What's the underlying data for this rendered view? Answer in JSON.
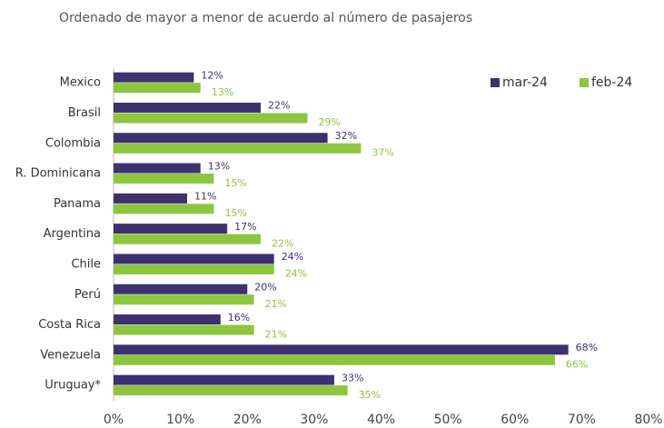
{
  "chart_data": {
    "type": "hbar",
    "title": "Ordenado de mayor a menor de acuerdo al número de pasajeros",
    "categories": [
      "Mexico",
      "Brasil",
      "Colombia",
      "R. Dominicana",
      "Panama",
      "Argentina",
      "Chile",
      "Perú",
      "Costa Rica",
      "Venezuela",
      "Uruguay*"
    ],
    "series": [
      {
        "name": "mar-24",
        "color": "#3d3170",
        "values": [
          12,
          22,
          32,
          13,
          11,
          17,
          24,
          20,
          16,
          68,
          33
        ],
        "value_labels": [
          "12%",
          "22%",
          "32%",
          "13%",
          "11%",
          "17%",
          "24%",
          "20%",
          "16%",
          "68%",
          "33%"
        ]
      },
      {
        "name": "feb-24",
        "color": "#8cc63f",
        "values": [
          13,
          29,
          37,
          15,
          15,
          22,
          24,
          21,
          21,
          66,
          35
        ],
        "value_labels": [
          "13%",
          "29%",
          "37%",
          "15%",
          "15%",
          "22%",
          "24%",
          "21%",
          "21%",
          "66%",
          "35%"
        ]
      }
    ],
    "xlim": [
      0,
      80
    ],
    "xticks": [
      {
        "value": 0,
        "label": "0%"
      },
      {
        "value": 10,
        "label": "10%"
      },
      {
        "value": 20,
        "label": "20%"
      },
      {
        "value": 30,
        "label": "30%"
      },
      {
        "value": 40,
        "label": "40%"
      },
      {
        "value": 50,
        "label": "50%"
      },
      {
        "value": 60,
        "label": "60%"
      },
      {
        "value": 70,
        "label": "70%"
      },
      {
        "value": 80,
        "label": "80%"
      }
    ],
    "legend": "top-right"
  }
}
